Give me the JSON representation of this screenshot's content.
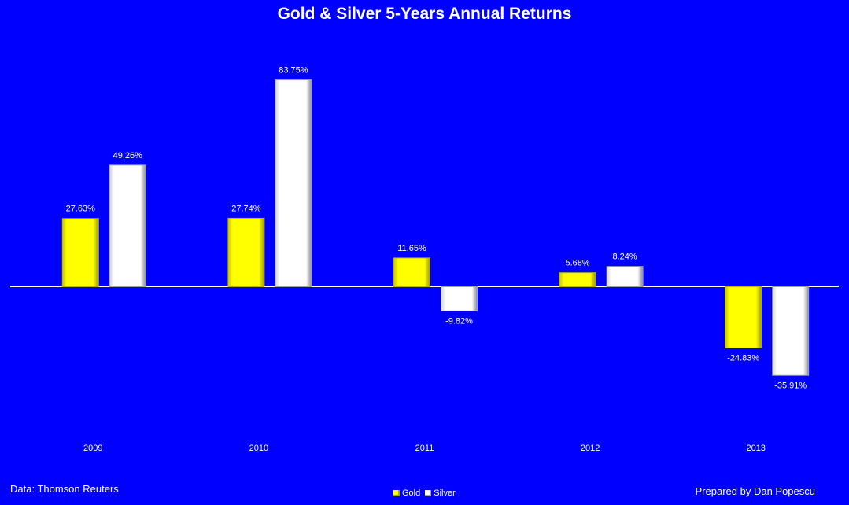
{
  "footer": {
    "source": "Data: Thomson Reuters",
    "credit": "Prepared by Dan Popescu"
  },
  "colors": {
    "background": "#0000FF",
    "gold": "#FFFF00",
    "silver": "#FFFFFF",
    "text": "#FFFFFF"
  },
  "chart_data": {
    "type": "bar",
    "title": "Gold & Silver 5-Years Annual Returns",
    "categories": [
      "2009",
      "2010",
      "2011",
      "2012",
      "2013"
    ],
    "series": [
      {
        "name": "Gold",
        "color": "#FFFF00",
        "values": [
          27.63,
          27.74,
          11.65,
          5.68,
          -24.83
        ],
        "labels": [
          "27.63%",
          "27.74%",
          "11.65%",
          "5.68%",
          "-24.83%"
        ]
      },
      {
        "name": "Silver",
        "color": "#FFFFFF",
        "values": [
          49.26,
          83.75,
          -9.82,
          8.24,
          -35.91
        ],
        "labels": [
          "49.26%",
          "83.75%",
          "-9.82%",
          "8.24%",
          "-35.91%"
        ]
      }
    ],
    "xlabel": "",
    "ylabel": "",
    "grid": false,
    "legend": "bottom-center"
  }
}
